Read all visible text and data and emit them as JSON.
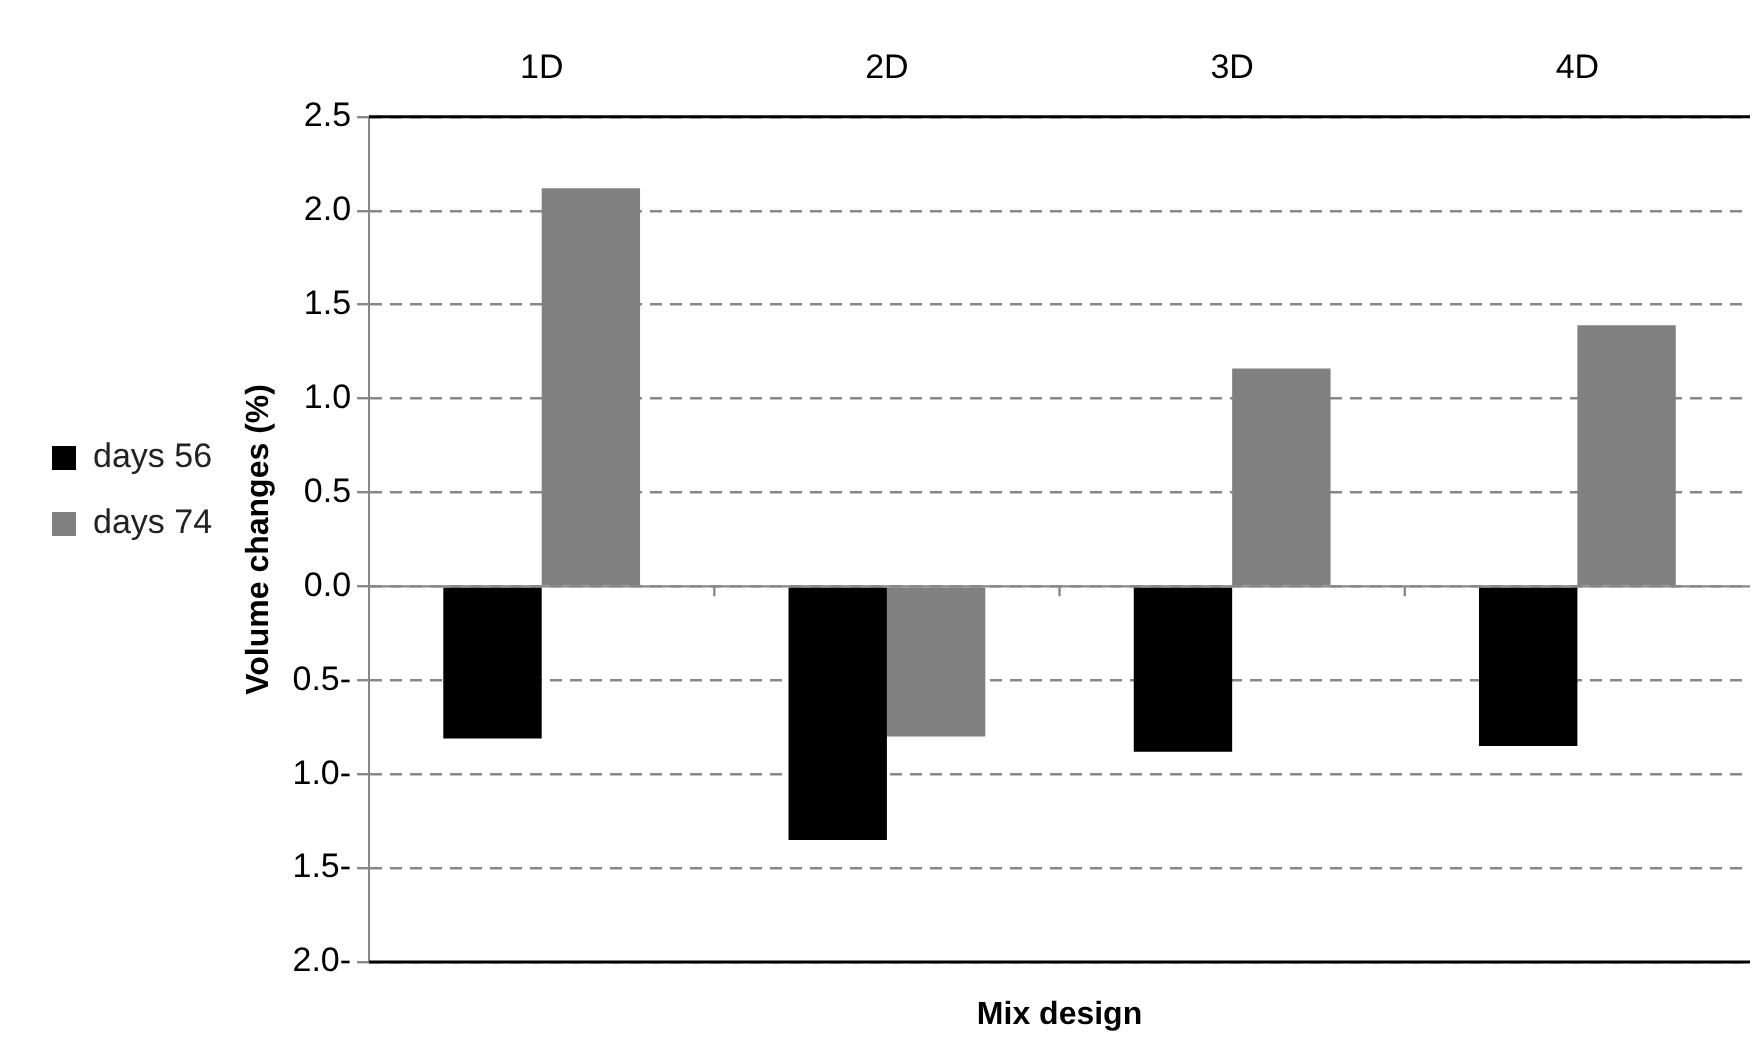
{
  "chart_data": {
    "type": "bar",
    "xlabel": "Mix design",
    "ylabel": "Volume changes (%)",
    "categories": [
      "1D",
      "2D",
      "3D",
      "4D"
    ],
    "series": [
      {
        "name": "days 56",
        "color": "#000000",
        "values": [
          -0.81,
          -1.35,
          -0.88,
          -0.85
        ]
      },
      {
        "name": "days 74",
        "color": "#808080",
        "values": [
          2.12,
          -0.8,
          1.16,
          1.39
        ]
      }
    ],
    "ylim": [
      -2,
      2.5
    ],
    "yticks": [
      {
        "value": 2.5,
        "label": "2.5"
      },
      {
        "value": 2,
        "label": "2.0"
      },
      {
        "value": 1.5,
        "label": "1.5"
      },
      {
        "value": 1,
        "label": "1.0"
      },
      {
        "value": 0.5,
        "label": "0.5"
      },
      {
        "value": 0,
        "label": "0.0"
      },
      {
        "value": -0.5,
        "label": "0.5-"
      },
      {
        "value": -1,
        "label": "1.0-"
      },
      {
        "value": -1.5,
        "label": "1.5-"
      },
      {
        "value": -2,
        "label": "2.0-"
      }
    ],
    "grid": "y",
    "legend": "left"
  }
}
